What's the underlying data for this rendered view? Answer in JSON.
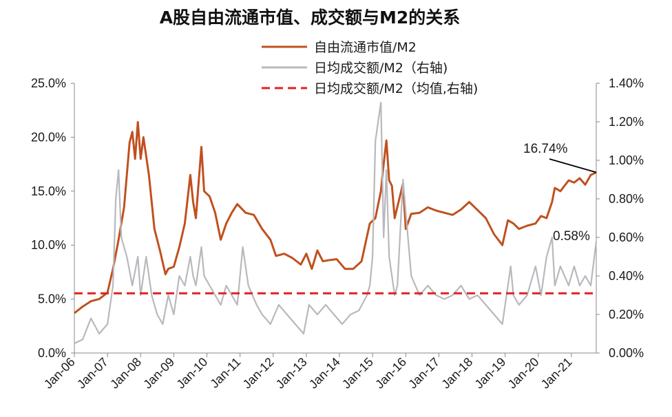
{
  "chart_data": {
    "type": "line",
    "title": "A股自由流通市值、成交额与M2的关系",
    "x_ticks": [
      "Jan-06",
      "Jan-07",
      "Jan-08",
      "Jan-09",
      "Jan-10",
      "Jan-11",
      "Jan-12",
      "Jan-13",
      "Jan-14",
      "Jan-15",
      "Jan-16",
      "Jan-17",
      "Jan-18",
      "Jan-19",
      "Jan-20",
      "Jan-21"
    ],
    "y_left_ticks": [
      "0.0%",
      "5.0%",
      "10.0%",
      "15.0%",
      "20.0%",
      "25.0%"
    ],
    "y_left_range": [
      0,
      25
    ],
    "y_right_ticks": [
      "0.00%",
      "0.20%",
      "0.40%",
      "0.60%",
      "0.80%",
      "1.00%",
      "1.20%",
      "1.40%"
    ],
    "y_right_range": [
      0,
      1.4
    ],
    "x_range": [
      "2006-01",
      "2021-10"
    ],
    "legend": [
      {
        "label": "自由流通市值/M2",
        "color": "#c0501e",
        "style": "solid"
      },
      {
        "label": "日均成交额/M2（右轴)",
        "color": "#b8b8bd",
        "style": "solid"
      },
      {
        "label": "日均成交额/M2（均值,右轴)",
        "color": "#e02020",
        "style": "dashed"
      }
    ],
    "annotations": [
      {
        "text": "16.74%",
        "series": "自由流通市值/M2"
      },
      {
        "text": "0.58%",
        "series": "日均成交额/M2（右轴)"
      }
    ],
    "series": [
      {
        "name": "自由流通市值/M2",
        "axis": "left",
        "unit": "%",
        "x": [
          "2006-01",
          "2006-04",
          "2006-07",
          "2006-10",
          "2007-01",
          "2007-03",
          "2007-05",
          "2007-07",
          "2007-09",
          "2007-10",
          "2007-11",
          "2007-12",
          "2008-01",
          "2008-02",
          "2008-04",
          "2008-06",
          "2008-08",
          "2008-10",
          "2008-11",
          "2009-01",
          "2009-03",
          "2009-05",
          "2009-07",
          "2009-08",
          "2009-09",
          "2009-11",
          "2009-12",
          "2010-02",
          "2010-04",
          "2010-06",
          "2010-08",
          "2010-10",
          "2010-12",
          "2011-03",
          "2011-06",
          "2011-09",
          "2011-12",
          "2012-02",
          "2012-05",
          "2012-08",
          "2012-11",
          "2013-01",
          "2013-03",
          "2013-05",
          "2013-07",
          "2013-09",
          "2013-12",
          "2014-03",
          "2014-06",
          "2014-09",
          "2014-12",
          "2015-02",
          "2015-04",
          "2015-05",
          "2015-06",
          "2015-07",
          "2015-08",
          "2015-09",
          "2015-12",
          "2016-01",
          "2016-03",
          "2016-06",
          "2016-09",
          "2016-12",
          "2017-03",
          "2017-06",
          "2017-09",
          "2017-12",
          "2018-02",
          "2018-04",
          "2018-06",
          "2018-09",
          "2018-12",
          "2019-02",
          "2019-04",
          "2019-06",
          "2019-09",
          "2019-12",
          "2020-02",
          "2020-04",
          "2020-06",
          "2020-07",
          "2020-09",
          "2020-12",
          "2021-02",
          "2021-04",
          "2021-06",
          "2021-08",
          "2021-10"
        ],
        "values": [
          3.7,
          4.3,
          4.8,
          5.0,
          5.6,
          7.8,
          10.5,
          13.5,
          19.5,
          20.5,
          18.0,
          21.4,
          18.0,
          20.0,
          16.5,
          11.5,
          9.5,
          7.3,
          7.8,
          8.0,
          9.8,
          12.0,
          16.5,
          14.0,
          12.5,
          19.1,
          15.0,
          14.5,
          13.0,
          10.5,
          12.0,
          13.0,
          13.8,
          13.0,
          12.8,
          11.5,
          10.5,
          9.0,
          9.2,
          8.8,
          8.2,
          9.2,
          7.8,
          9.5,
          8.5,
          8.6,
          8.7,
          7.8,
          7.8,
          8.5,
          12.0,
          12.5,
          15.0,
          17.5,
          19.7,
          16.0,
          15.5,
          12.5,
          15.7,
          11.5,
          12.9,
          13.0,
          13.5,
          13.2,
          13.0,
          12.8,
          13.3,
          14.0,
          13.5,
          13.0,
          12.5,
          11.0,
          10.0,
          12.3,
          12.0,
          11.5,
          11.8,
          12.0,
          12.7,
          12.5,
          14.0,
          15.3,
          15.0,
          16.0,
          15.8,
          16.2,
          15.6,
          16.5,
          16.74
        ]
      },
      {
        "name": "日均成交额/M2（右轴)",
        "axis": "right",
        "unit": "%",
        "x": [
          "2006-01",
          "2006-04",
          "2006-07",
          "2006-10",
          "2007-01",
          "2007-03",
          "2007-04",
          "2007-05",
          "2007-06",
          "2007-08",
          "2007-10",
          "2007-12",
          "2008-01",
          "2008-03",
          "2008-05",
          "2008-07",
          "2008-09",
          "2008-11",
          "2009-01",
          "2009-03",
          "2009-05",
          "2009-07",
          "2009-08",
          "2009-09",
          "2009-11",
          "2009-12",
          "2010-02",
          "2010-04",
          "2010-06",
          "2010-08",
          "2010-10",
          "2010-12",
          "2011-02",
          "2011-04",
          "2011-07",
          "2011-09",
          "2011-12",
          "2012-03",
          "2012-06",
          "2012-09",
          "2012-12",
          "2013-02",
          "2013-05",
          "2013-08",
          "2013-11",
          "2014-02",
          "2014-05",
          "2014-08",
          "2014-11",
          "2014-12",
          "2015-01",
          "2015-02",
          "2015-03",
          "2015-04",
          "2015-05",
          "2015-06",
          "2015-07",
          "2015-08",
          "2015-09",
          "2015-10",
          "2015-12",
          "2016-03",
          "2016-06",
          "2016-09",
          "2016-12",
          "2017-03",
          "2017-06",
          "2017-09",
          "2017-12",
          "2018-03",
          "2018-06",
          "2018-09",
          "2018-12",
          "2019-02",
          "2019-03",
          "2019-04",
          "2019-06",
          "2019-09",
          "2019-12",
          "2020-02",
          "2020-04",
          "2020-06",
          "2020-07",
          "2020-08",
          "2020-09",
          "2020-12",
          "2021-02",
          "2021-04",
          "2021-06",
          "2021-08",
          "2021-10"
        ],
        "values": [
          0.05,
          0.07,
          0.18,
          0.1,
          0.15,
          0.35,
          0.8,
          0.95,
          0.6,
          0.5,
          0.35,
          0.5,
          0.3,
          0.5,
          0.3,
          0.2,
          0.15,
          0.3,
          0.2,
          0.4,
          0.35,
          0.5,
          0.4,
          0.35,
          0.55,
          0.4,
          0.35,
          0.3,
          0.25,
          0.35,
          0.3,
          0.25,
          0.55,
          0.35,
          0.25,
          0.2,
          0.15,
          0.25,
          0.2,
          0.15,
          0.1,
          0.25,
          0.2,
          0.25,
          0.2,
          0.15,
          0.2,
          0.22,
          0.3,
          0.35,
          0.5,
          1.1,
          1.2,
          1.3,
          0.6,
          0.95,
          0.5,
          0.4,
          0.3,
          0.35,
          0.9,
          0.4,
          0.3,
          0.35,
          0.3,
          0.28,
          0.3,
          0.35,
          0.28,
          0.3,
          0.25,
          0.2,
          0.15,
          0.35,
          0.45,
          0.3,
          0.25,
          0.3,
          0.45,
          0.3,
          0.5,
          0.6,
          0.35,
          0.4,
          0.45,
          0.35,
          0.45,
          0.35,
          0.4,
          0.35,
          0.58
        ]
      },
      {
        "name": "日均成交额/M2（均值,右轴)",
        "axis": "right",
        "unit": "%",
        "x": [
          "2006-01",
          "2021-10"
        ],
        "values": [
          0.31,
          0.31
        ]
      }
    ]
  }
}
